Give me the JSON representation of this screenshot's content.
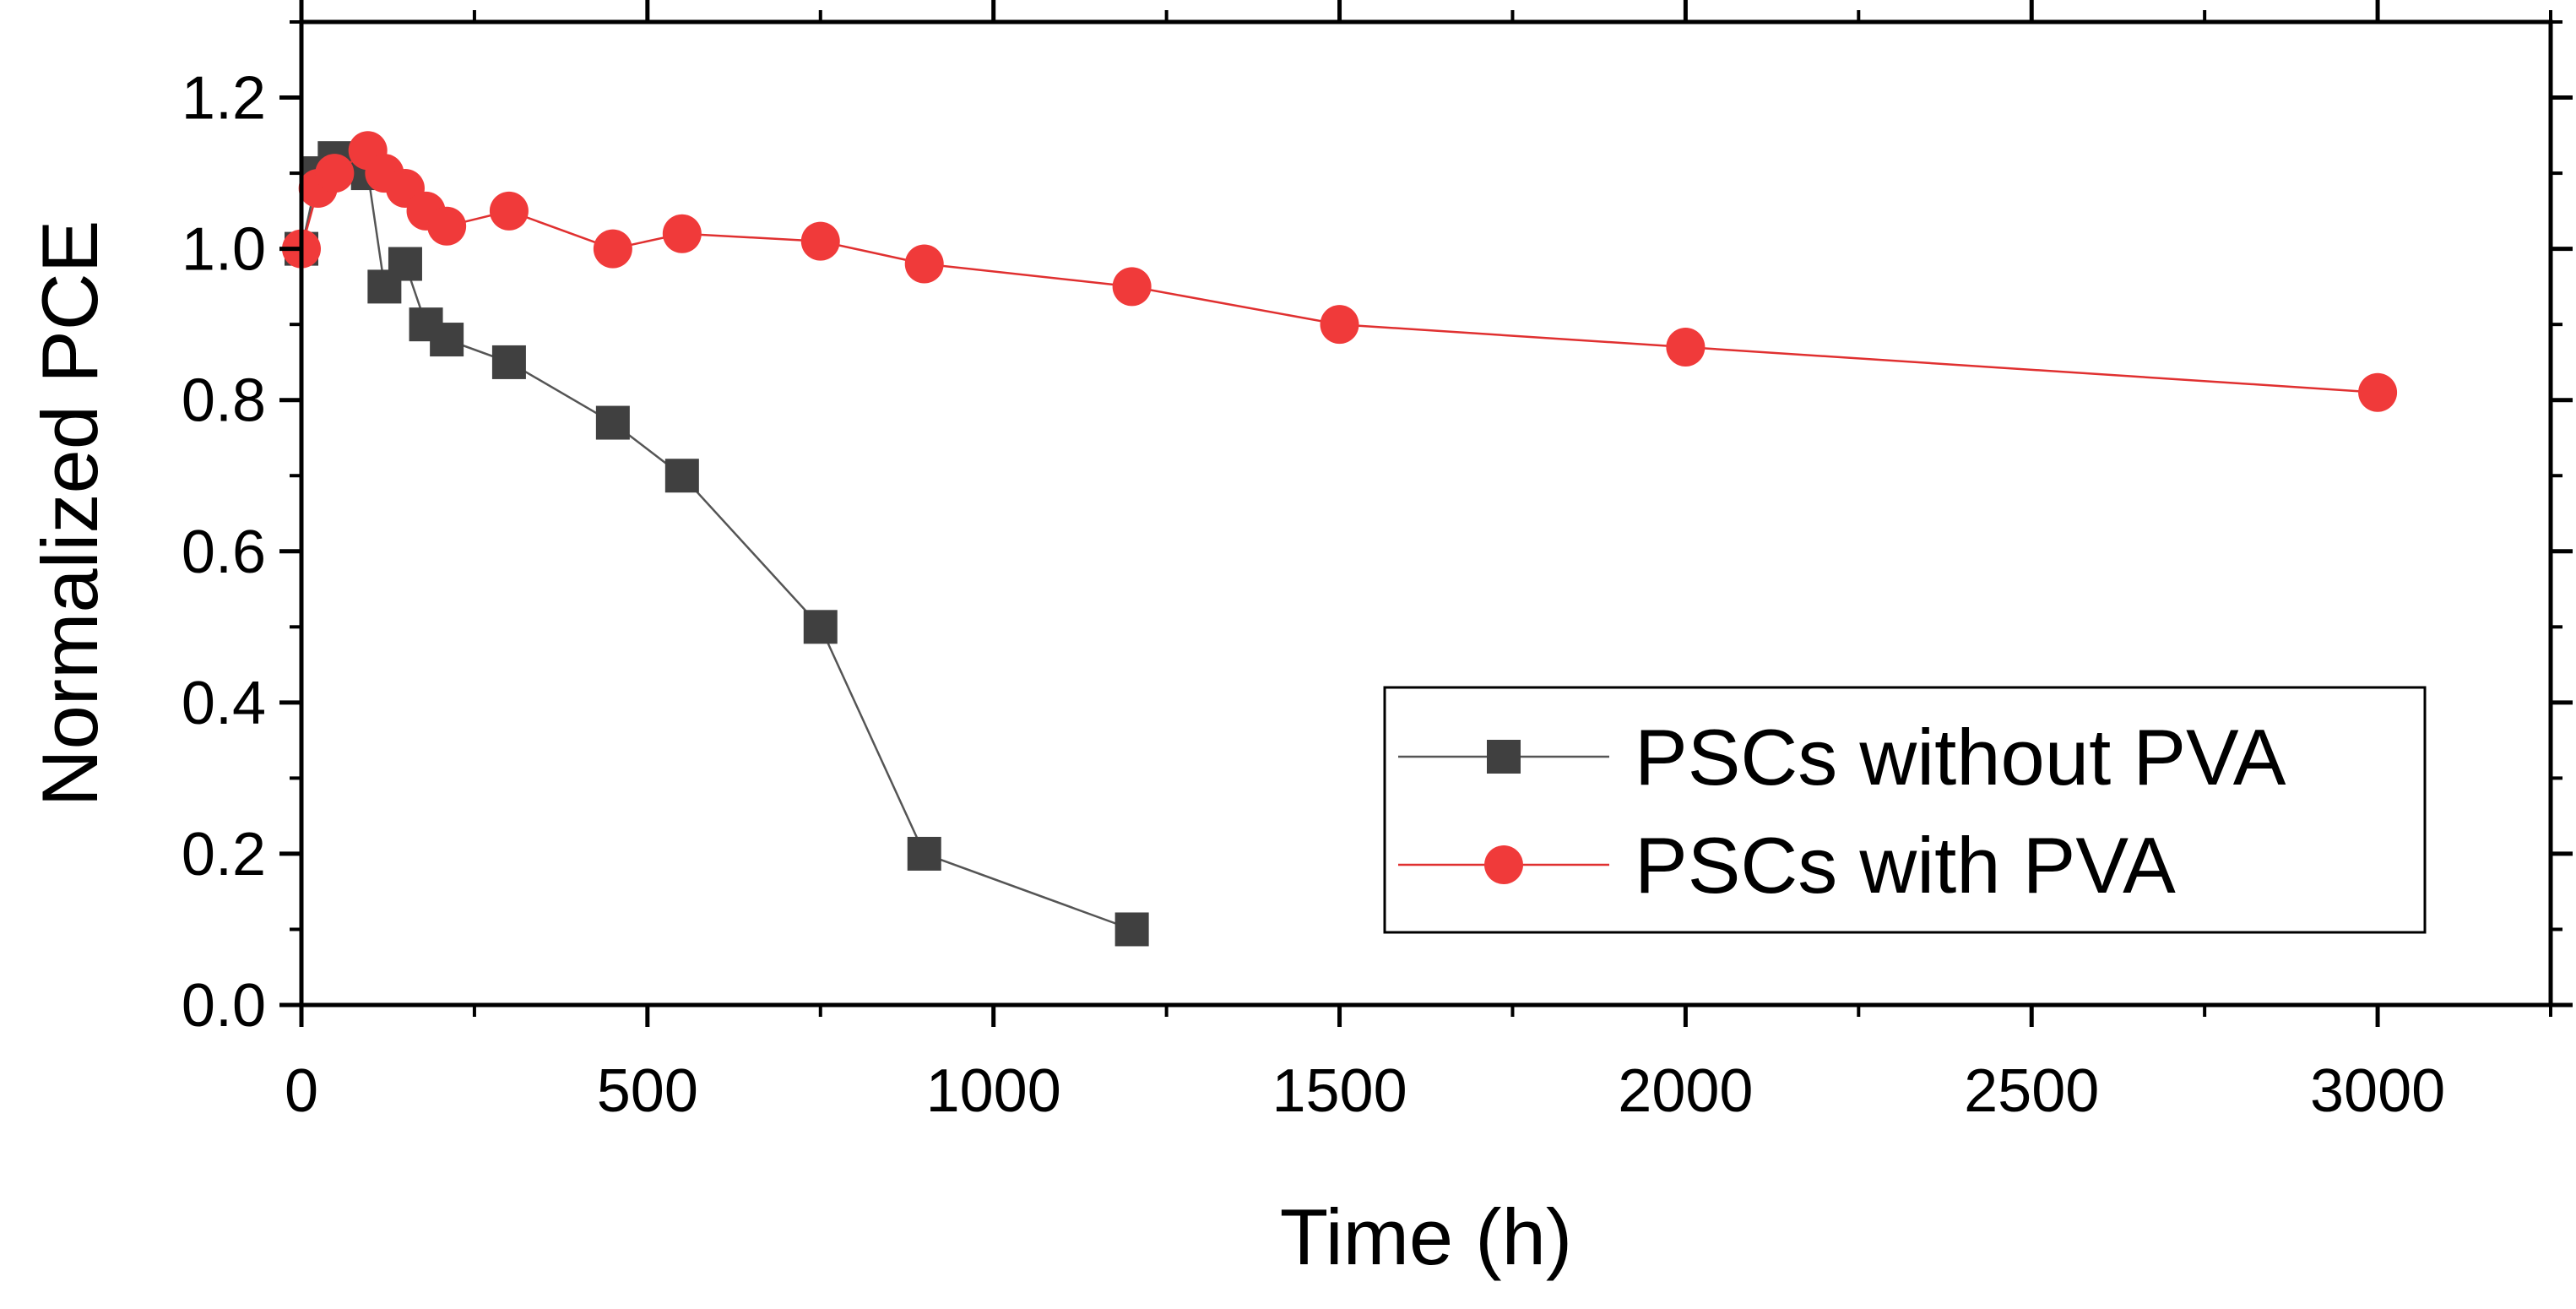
{
  "chart_data": {
    "type": "line",
    "title": "",
    "xlabel": "Time (h)",
    "ylabel": "Normalized PCE",
    "xlim": [
      0,
      3250
    ],
    "ylim": [
      0,
      1.3
    ],
    "x_ticks": [
      0,
      500,
      1000,
      1500,
      2000,
      2500,
      3000
    ],
    "x_tick_labels": [
      "0",
      "500",
      "1000",
      "1500",
      "2000",
      "2500",
      "3000"
    ],
    "y_ticks": [
      0.0,
      0.2,
      0.4,
      0.6,
      0.8,
      1.0,
      1.2
    ],
    "y_tick_labels": [
      "0.0",
      "0.2",
      "0.4",
      "0.6",
      "0.8",
      "1.0",
      "1.2"
    ],
    "grid": false,
    "legend_position": "bottom-right",
    "series": [
      {
        "name": "PSCs without PVA",
        "marker": "square",
        "color": "#404040",
        "line_color": "#555555",
        "points": [
          {
            "x": 0,
            "y": 1.0
          },
          {
            "x": 24,
            "y": 1.1
          },
          {
            "x": 48,
            "y": 1.12
          },
          {
            "x": 72,
            "y": 1.11
          },
          {
            "x": 96,
            "y": 1.1
          },
          {
            "x": 120,
            "y": 0.95
          },
          {
            "x": 150,
            "y": 0.98
          },
          {
            "x": 180,
            "y": 0.9
          },
          {
            "x": 210,
            "y": 0.88
          },
          {
            "x": 300,
            "y": 0.85
          },
          {
            "x": 450,
            "y": 0.77
          },
          {
            "x": 550,
            "y": 0.7
          },
          {
            "x": 750,
            "y": 0.5
          },
          {
            "x": 900,
            "y": 0.2
          },
          {
            "x": 1200,
            "y": 0.1
          }
        ]
      },
      {
        "name": "PSCs with PVA",
        "marker": "circle",
        "color": "#f03a3a",
        "line_color": "#e03030",
        "points": [
          {
            "x": 0,
            "y": 1.0
          },
          {
            "x": 24,
            "y": 1.08
          },
          {
            "x": 48,
            "y": 1.1
          },
          {
            "x": 96,
            "y": 1.13
          },
          {
            "x": 120,
            "y": 1.1
          },
          {
            "x": 150,
            "y": 1.08
          },
          {
            "x": 180,
            "y": 1.05
          },
          {
            "x": 210,
            "y": 1.03
          },
          {
            "x": 300,
            "y": 1.05
          },
          {
            "x": 450,
            "y": 1.0
          },
          {
            "x": 550,
            "y": 1.02
          },
          {
            "x": 750,
            "y": 1.01
          },
          {
            "x": 900,
            "y": 0.98
          },
          {
            "x": 1200,
            "y": 0.95
          },
          {
            "x": 1500,
            "y": 0.9
          },
          {
            "x": 2000,
            "y": 0.87
          },
          {
            "x": 3000,
            "y": 0.81
          }
        ]
      }
    ]
  }
}
